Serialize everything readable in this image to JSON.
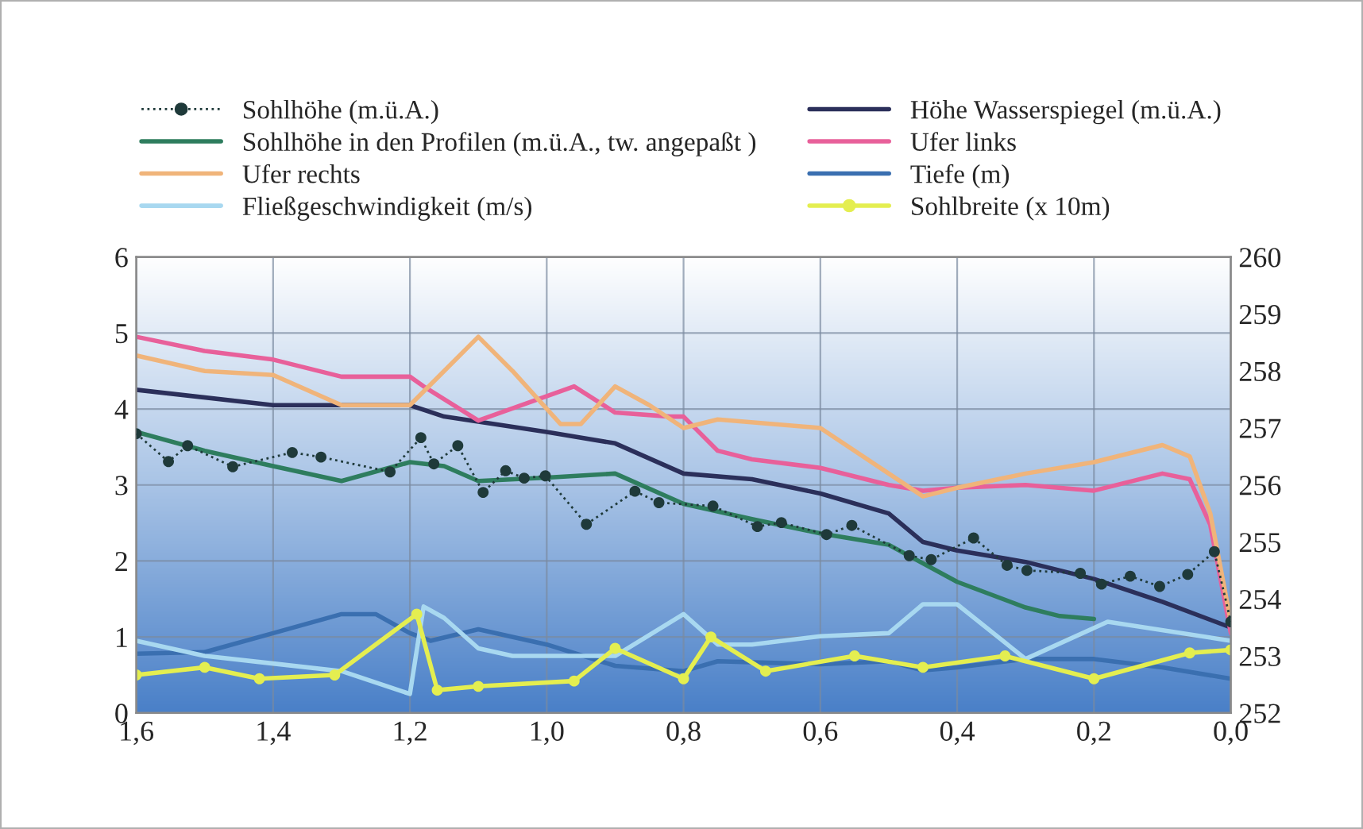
{
  "chart_data": {
    "type": "line",
    "xlim": [
      1.6,
      0.0
    ],
    "xticks": [
      {
        "value": 1.6,
        "label": "1,6"
      },
      {
        "value": 1.4,
        "label": "1,4"
      },
      {
        "value": 1.2,
        "label": "1,2"
      },
      {
        "value": 1.0,
        "label": "1,0"
      },
      {
        "value": 0.8,
        "label": "0,8"
      },
      {
        "value": 0.6,
        "label": "0,6"
      },
      {
        "value": 0.4,
        "label": "0,4"
      },
      {
        "value": 0.2,
        "label": "0,2"
      },
      {
        "value": 0.0,
        "label": "0,0"
      }
    ],
    "ylim": [
      0,
      6
    ],
    "yticks": [
      0,
      1,
      2,
      3,
      4,
      5,
      6
    ],
    "y2lim": [
      252,
      260
    ],
    "y2ticks": [
      252,
      253,
      254,
      255,
      256,
      257,
      258,
      259,
      260
    ],
    "grid": true,
    "legend": "top",
    "series": [
      {
        "name": "Sohlhöhe (m.ü.A.)",
        "color": "#1f3a3a",
        "axis": "y2",
        "marker": "circle",
        "line_style": "dotted",
        "x": [
          1.6,
          1.553,
          1.525,
          1.459,
          1.372,
          1.33,
          1.229,
          1.184,
          1.165,
          1.13,
          1.093,
          1.06,
          1.033,
          1.002,
          0.942,
          0.871,
          0.836,
          0.757,
          0.692,
          0.657,
          0.591,
          0.554,
          0.47,
          0.438,
          0.376,
          0.327,
          0.298,
          0.22,
          0.189,
          0.147,
          0.104,
          0.063,
          0.024,
          0.0
        ],
        "values": [
          256.9,
          256.41,
          256.69,
          256.32,
          256.57,
          256.49,
          256.23,
          256.83,
          256.37,
          256.69,
          255.87,
          256.25,
          256.12,
          256.16,
          255.31,
          255.89,
          255.69,
          255.63,
          255.27,
          255.34,
          255.13,
          255.29,
          254.76,
          254.69,
          255.07,
          254.59,
          254.5,
          254.45,
          254.26,
          254.4,
          254.22,
          254.43,
          254.83,
          253.6
        ]
      },
      {
        "name": "Höhe Wasserspiegel (m.ü.A.)",
        "color": "#2b2f5a",
        "axis": "y2",
        "x": [
          1.6,
          1.4,
          1.2,
          1.15,
          1.0,
          0.9,
          0.8,
          0.7,
          0.6,
          0.5,
          0.45,
          0.4,
          0.3,
          0.2,
          0.1,
          0.0
        ],
        "values": [
          257.67,
          257.4,
          257.4,
          257.2,
          256.93,
          256.73,
          256.2,
          256.1,
          255.85,
          255.5,
          255.0,
          254.85,
          254.65,
          254.35,
          253.95,
          253.5
        ]
      },
      {
        "name": "Sohlhöhe in den Profilen (m.ü.A., tw. angepaßt )",
        "color": "#2e7d5e",
        "axis": "y2",
        "x": [
          1.6,
          1.5,
          1.4,
          1.3,
          1.2,
          1.15,
          1.1,
          1.0,
          0.9,
          0.8,
          0.7,
          0.6,
          0.5,
          0.4,
          0.3,
          0.25,
          0.2
        ],
        "values": [
          256.93,
          256.6,
          256.33,
          256.07,
          256.4,
          256.33,
          256.07,
          256.13,
          256.2,
          255.67,
          255.4,
          255.15,
          254.95,
          254.3,
          253.85,
          253.7,
          253.65
        ]
      },
      {
        "name": "Ufer links",
        "color": "#e8609a",
        "axis": "y2",
        "x": [
          1.6,
          1.5,
          1.4,
          1.3,
          1.2,
          1.18,
          1.1,
          0.96,
          0.9,
          0.82,
          0.8,
          0.75,
          0.7,
          0.6,
          0.5,
          0.45,
          0.4,
          0.3,
          0.2,
          0.1,
          0.06,
          0.03,
          0.0
        ],
        "values": [
          258.6,
          258.35,
          258.2,
          257.9,
          257.9,
          257.73,
          257.13,
          257.73,
          257.27,
          257.2,
          257.2,
          256.6,
          256.45,
          256.3,
          256.0,
          255.9,
          255.95,
          256.0,
          255.9,
          256.2,
          256.1,
          255.3,
          253.4
        ]
      },
      {
        "name": "Ufer rechts",
        "color": "#f0b47a",
        "axis": "y2",
        "x": [
          1.6,
          1.5,
          1.4,
          1.3,
          1.2,
          1.15,
          1.1,
          1.05,
          0.98,
          0.95,
          0.9,
          0.85,
          0.8,
          0.75,
          0.6,
          0.5,
          0.45,
          0.4,
          0.3,
          0.2,
          0.1,
          0.06,
          0.03,
          0.0
        ],
        "values": [
          258.27,
          258.0,
          257.93,
          257.4,
          257.4,
          258.0,
          258.6,
          258.0,
          257.07,
          257.07,
          257.73,
          257.4,
          257.0,
          257.15,
          257.0,
          256.2,
          255.8,
          255.95,
          256.2,
          256.4,
          256.7,
          256.5,
          255.5,
          253.6
        ]
      },
      {
        "name": "Tiefe (m)",
        "color": "#3a6fb0",
        "x": [
          1.6,
          1.5,
          1.4,
          1.3,
          1.25,
          1.2,
          1.17,
          1.1,
          1.0,
          0.9,
          0.8,
          0.75,
          0.6,
          0.5,
          0.45,
          0.4,
          0.3,
          0.2,
          0.1,
          0.0
        ],
        "values": [
          0.78,
          0.8,
          1.05,
          1.3,
          1.3,
          1.05,
          0.95,
          1.1,
          0.9,
          0.62,
          0.55,
          0.68,
          0.64,
          0.68,
          0.56,
          0.6,
          0.71,
          0.71,
          0.6,
          0.45
        ]
      },
      {
        "name": "Fließgeschwindigkeit (m/s)",
        "color": "#a8d8f0",
        "x": [
          1.6,
          1.5,
          1.4,
          1.3,
          1.2,
          1.18,
          1.15,
          1.1,
          1.05,
          1.0,
          0.9,
          0.8,
          0.75,
          0.7,
          0.6,
          0.5,
          0.45,
          0.4,
          0.3,
          0.18,
          0.0
        ],
        "values": [
          0.95,
          0.75,
          0.65,
          0.55,
          0.25,
          1.4,
          1.25,
          0.85,
          0.75,
          0.75,
          0.75,
          1.3,
          0.9,
          0.9,
          1.01,
          1.05,
          1.43,
          1.43,
          0.71,
          1.2,
          0.95
        ]
      },
      {
        "name": "Sohlbreite (x 10m)",
        "color": "#e4ee50",
        "marker": "circle",
        "x": [
          1.6,
          1.5,
          1.42,
          1.31,
          1.19,
          1.16,
          1.1,
          0.96,
          0.9,
          0.8,
          0.76,
          0.68,
          0.55,
          0.45,
          0.33,
          0.2,
          0.06,
          0.0
        ],
        "values": [
          0.5,
          0.6,
          0.45,
          0.5,
          1.3,
          0.3,
          0.35,
          0.42,
          0.85,
          0.45,
          1.0,
          0.55,
          0.75,
          0.6,
          0.75,
          0.45,
          0.79,
          0.83
        ]
      }
    ]
  }
}
